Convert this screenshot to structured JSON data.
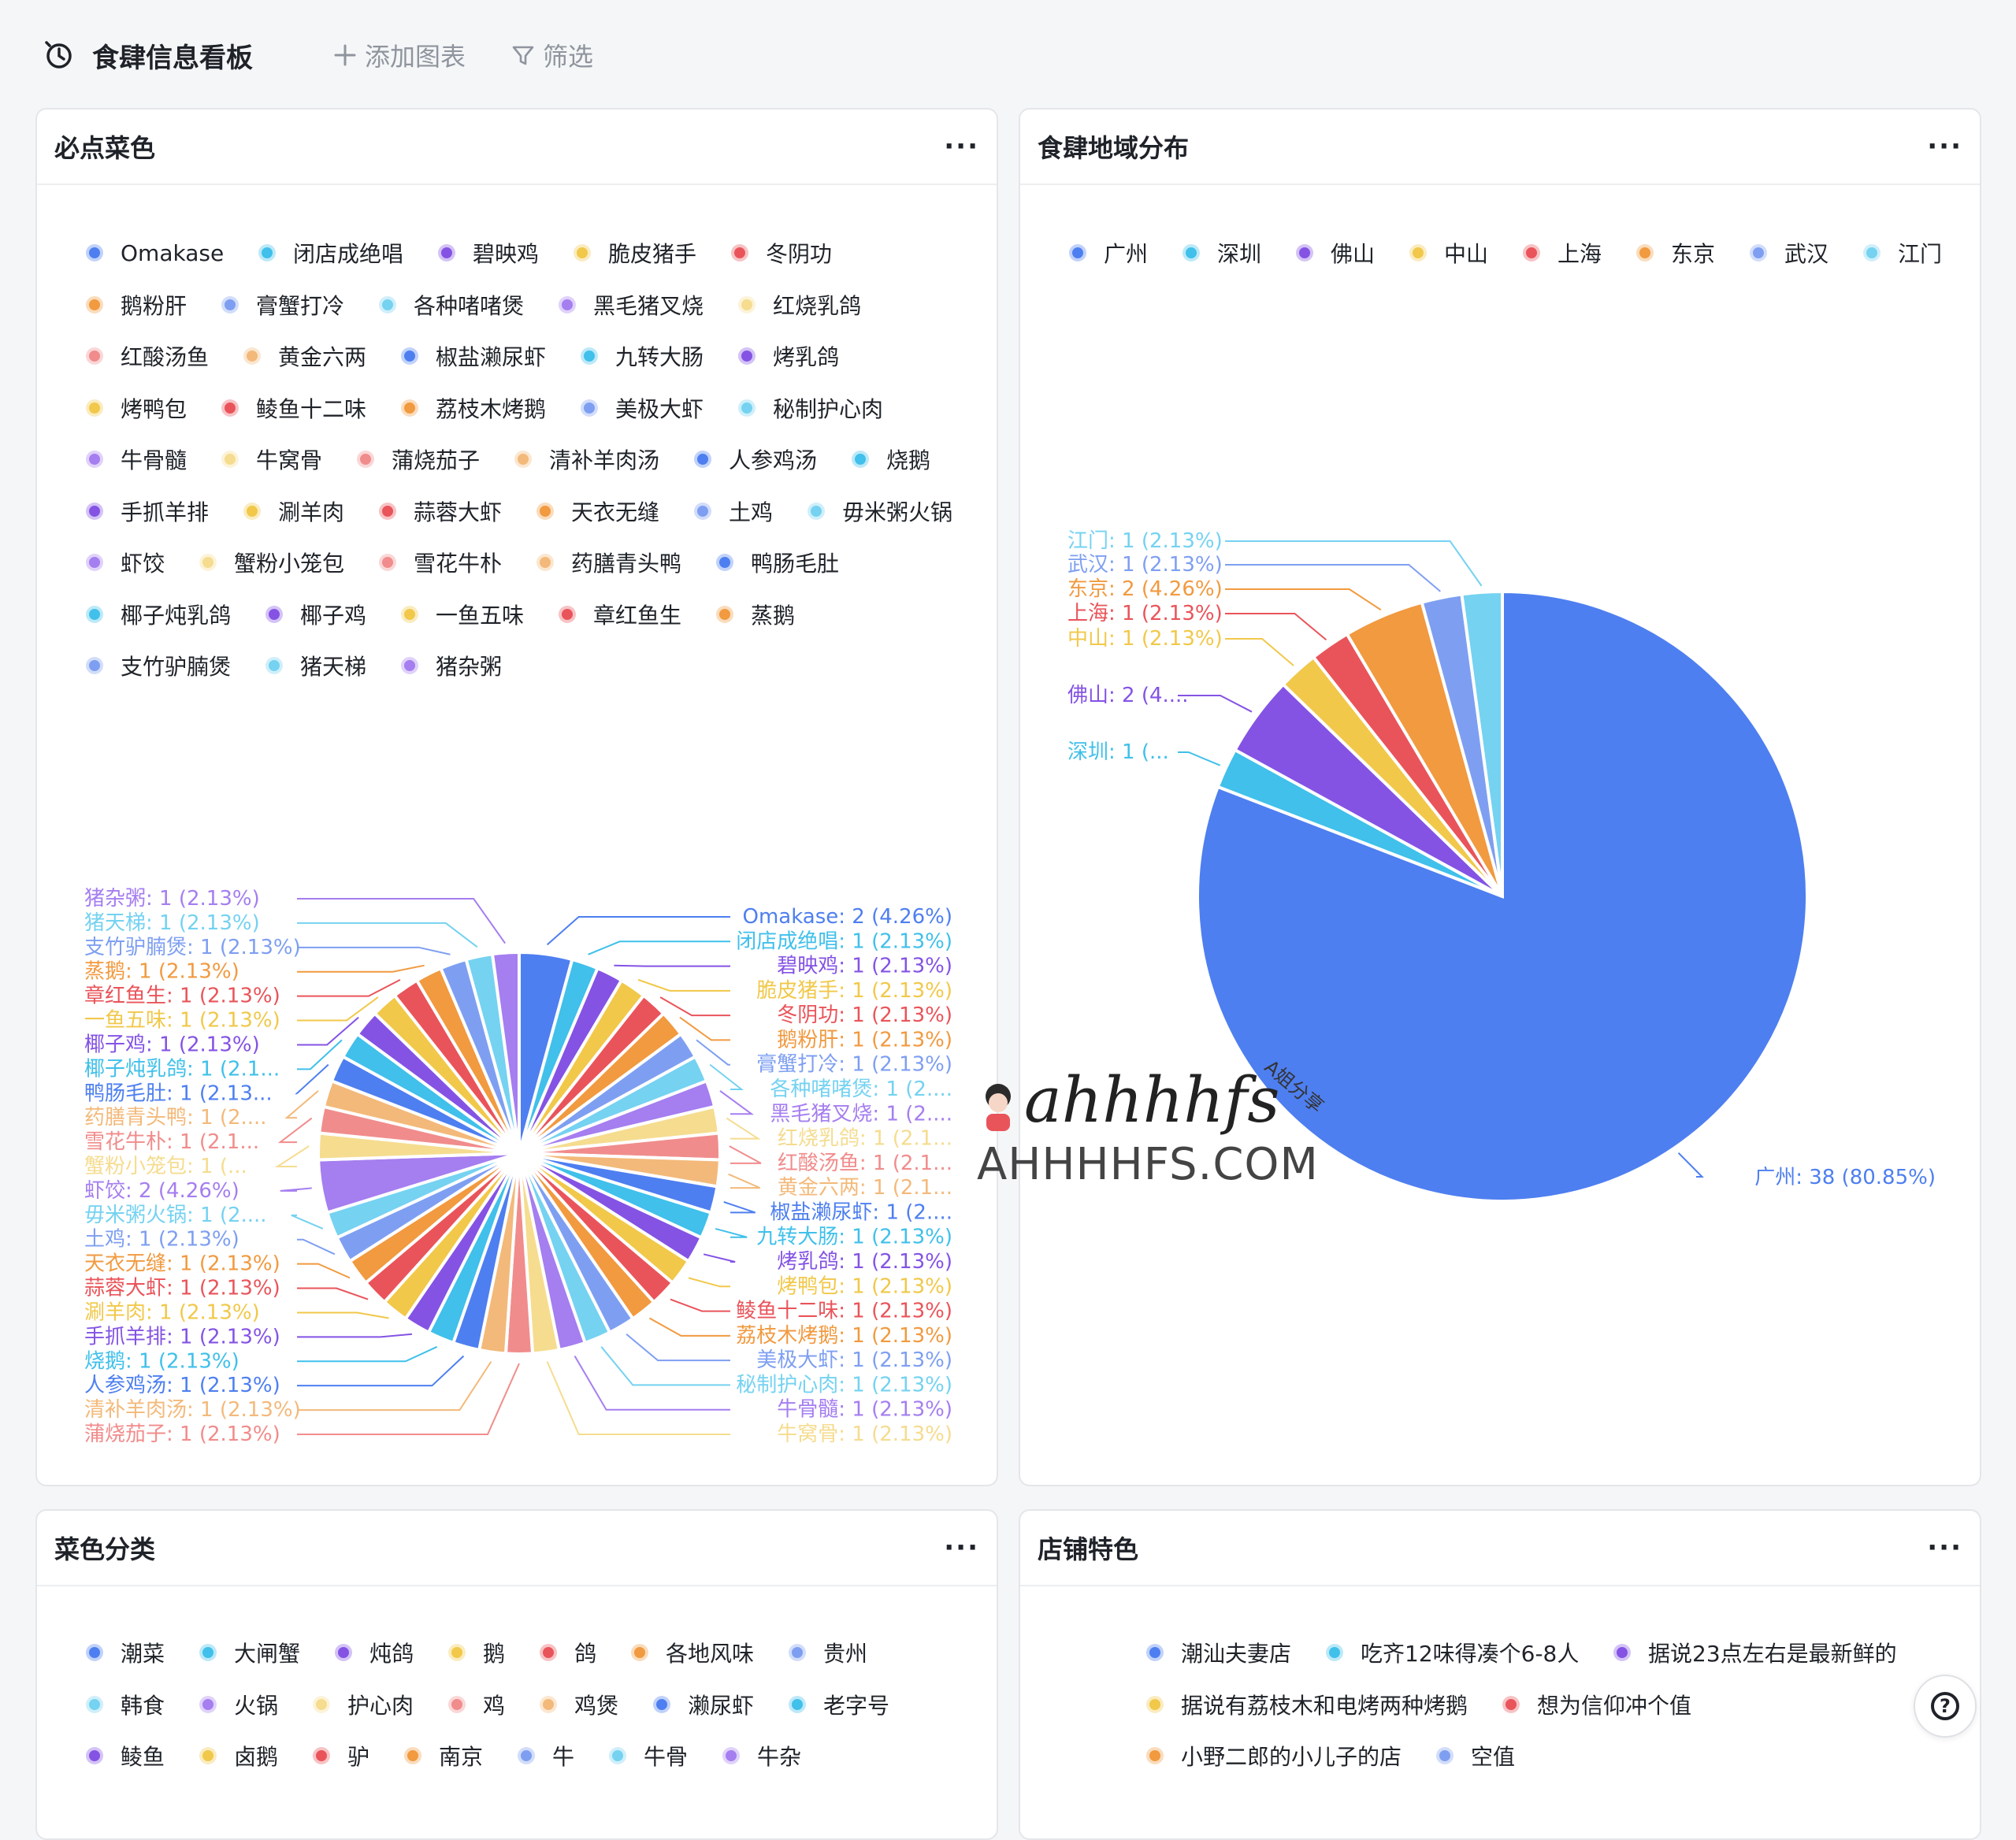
{
  "topbar": {
    "title": "食肆信息看板",
    "add_chart": "添加图表",
    "filter": "筛选"
  },
  "colors": {
    "palette": [
      "#4e7ff0",
      "#40c0ea",
      "#8453e4",
      "#f1c84a",
      "#e9545a",
      "#f19a40",
      "#7e9ff1",
      "#75d2f1",
      "#a57ef0",
      "#f5dc8f",
      "#f18c8c",
      "#f3b97a"
    ]
  },
  "cards": {
    "dishes": {
      "title": "必点菜色",
      "more": "···"
    },
    "region": {
      "title": "食肆地域分布",
      "more": "···"
    },
    "category": {
      "title": "菜色分类",
      "more": "···"
    },
    "feature": {
      "title": "店铺特色",
      "more": "···"
    }
  },
  "watermark": {
    "script": "ahhhhfs",
    "site": "AHHHHFS.COM",
    "tag": "A姐分享"
  },
  "chart_data": [
    {
      "type": "pie",
      "title": "必点菜色",
      "legend_position": "top",
      "labels": [
        "Omakase",
        "闭店成绝唱",
        "碧映鸡",
        "脆皮猪手",
        "冬阴功",
        "鹅粉肝",
        "膏蟹打冷",
        "各种啫啫煲",
        "黑毛猪叉烧",
        "红烧乳鸽",
        "红酸汤鱼",
        "黄金六两",
        "椒盐濑尿虾",
        "九转大肠",
        "烤乳鸽",
        "烤鸭包",
        "鲮鱼十二味",
        "荔枝木烤鹅",
        "美极大虾",
        "秘制护心肉",
        "牛骨髓",
        "牛窝骨",
        "蒲烧茄子",
        "清补羊肉汤",
        "人参鸡汤",
        "烧鹅",
        "手抓羊排",
        "涮羊肉",
        "蒜蓉大虾",
        "天衣无缝",
        "土鸡",
        "毋米粥火锅",
        "虾饺",
        "蟹粉小笼包",
        "雪花牛朴",
        "药膳青头鸭",
        "鸭肠毛肚",
        "椰子炖乳鸽",
        "椰子鸡",
        "一鱼五味",
        "章红鱼生",
        "蒸鹅",
        "支竹驴腩煲",
        "猪天梯",
        "猪杂粥"
      ],
      "values": [
        2,
        1,
        1,
        1,
        1,
        1,
        1,
        1,
        1,
        1,
        1,
        1,
        1,
        1,
        1,
        1,
        1,
        1,
        1,
        1,
        1,
        1,
        1,
        1,
        1,
        1,
        1,
        1,
        1,
        1,
        1,
        1,
        2,
        1,
        1,
        1,
        1,
        1,
        1,
        1,
        1,
        1,
        1,
        1,
        1
      ],
      "data_labels_right": [
        "Omakase: 2 (4.26%)",
        "闭店成绝唱: 1 (2.13%)",
        "碧映鸡: 1 (2.13%)",
        "脆皮猪手: 1 (2.13%)",
        "冬阴功: 1 (2.13%)",
        "鹅粉肝: 1 (2.13%)",
        "膏蟹打冷: 1 (2.13%)",
        "各种啫啫煲: 1 (2....",
        "黑毛猪叉烧: 1 (2....",
        "红烧乳鸽: 1 (2.1...",
        "红酸汤鱼: 1 (2.1...",
        "黄金六两: 1 (2.1...",
        "椒盐濑尿虾: 1 (2....",
        "九转大肠: 1 (2.13%)",
        "烤乳鸽: 1 (2.13%)",
        "烤鸭包: 1 (2.13%)",
        "鲮鱼十二味: 1 (2.13%)",
        "荔枝木烤鹅: 1 (2.13%)",
        "美极大虾: 1 (2.13%)",
        "秘制护心肉: 1 (2.13%)",
        "牛骨髓: 1 (2.13%)",
        "牛窝骨: 1 (2.13%)"
      ],
      "data_labels_left": [
        "猪杂粥: 1 (2.13%)",
        "猪天梯: 1 (2.13%)",
        "支竹驴腩煲: 1 (2.13%)",
        "蒸鹅: 1 (2.13%)",
        "章红鱼生: 1 (2.13%)",
        "一鱼五味: 1 (2.13%)",
        "椰子鸡: 1 (2.13%)",
        "椰子炖乳鸽: 1 (2.1...",
        "鸭肠毛肚: 1 (2.13...",
        "药膳青头鸭: 1 (2....",
        "雪花牛朴: 1 (2.1...",
        "蟹粉小笼包: 1 (...",
        "虾饺: 2 (4.26%)",
        "毋米粥火锅: 1 (2....",
        "土鸡: 1 (2.13%)",
        "天衣无缝: 1 (2.13%)",
        "蒜蓉大虾: 1 (2.13%)",
        "涮羊肉: 1 (2.13%)",
        "手抓羊排: 1 (2.13%)",
        "烧鹅: 1 (2.13%)",
        "人参鸡汤: 1 (2.13%)",
        "清补羊肉汤: 1 (2.13%)",
        "蒲烧茄子: 1 (2.13%)"
      ]
    },
    {
      "type": "pie",
      "title": "食肆地域分布",
      "legend_position": "top",
      "labels": [
        "广州",
        "深圳",
        "佛山",
        "中山",
        "上海",
        "东京",
        "武汉",
        "江门"
      ],
      "values": [
        38,
        1,
        2,
        1,
        1,
        2,
        1,
        1
      ],
      "data_labels": [
        "广州: 38 (80.85%)",
        "深圳: 1 (...",
        "佛山: 2 (4....",
        "中山: 1 (2.13%)",
        "上海: 1 (2.13%)",
        "东京: 2 (4.26%)",
        "武汉: 1 (2.13%)",
        "江门: 1 (2.13%)"
      ]
    }
  ],
  "legends": {
    "category": [
      "潮菜",
      "大闸蟹",
      "炖鸽",
      "鹅",
      "鸽",
      "各地风味",
      "贵州",
      "韩食",
      "火锅",
      "护心肉",
      "鸡",
      "鸡煲",
      "濑尿虾",
      "老字号",
      "鲮鱼",
      "卤鹅",
      "驴",
      "南京",
      "牛",
      "牛骨",
      "牛杂"
    ],
    "feature": [
      "潮汕夫妻店",
      "吃齐12味得凑个6-8人",
      "据说23点左右是最新鲜的",
      "据说有荔枝木和电烤两种烤鹅",
      "想为信仰冲个值",
      "小野二郎的小儿子的店",
      "空值"
    ]
  },
  "help": {
    "label": "?"
  }
}
